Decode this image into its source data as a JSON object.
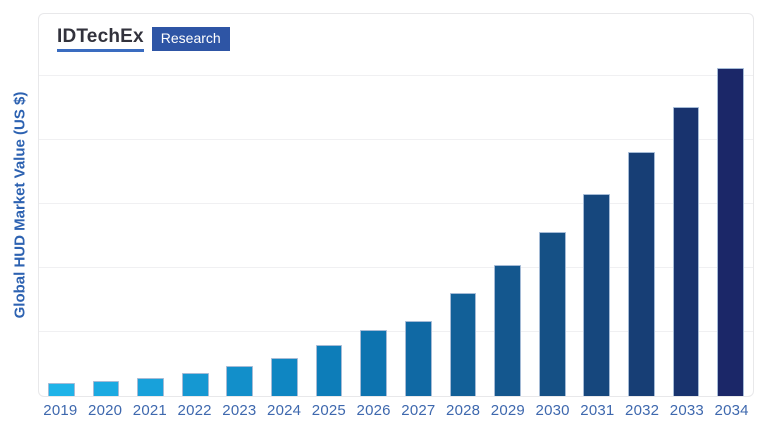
{
  "logo": {
    "brand": "IDTechEx",
    "product": "Research",
    "brand_color": "#32323c",
    "underline_color": "#3a6cc0",
    "badge_bg": "#2e55a5",
    "badge_text_color": "#ffffff"
  },
  "axes": {
    "y_title": "Global HUD Market Value (US $)",
    "y_title_color": "#2d62b1",
    "x_label_color": "#3e68ae",
    "y_numeric_labels_shown": "none"
  },
  "chart_data": {
    "type": "bar",
    "title": "",
    "xlabel": "",
    "ylabel": "Global HUD Market Value (US $)",
    "value_note": "y-axis has no numeric tick labels; values estimated in gridline units (1 unit = one horizontal gridline interval)",
    "categories": [
      "2019",
      "2020",
      "2021",
      "2022",
      "2023",
      "2024",
      "2025",
      "2026",
      "2027",
      "2028",
      "2029",
      "2030",
      "2031",
      "2032",
      "2033",
      "2034"
    ],
    "values": [
      0.21,
      0.23,
      0.28,
      0.36,
      0.47,
      0.59,
      0.8,
      1.03,
      1.17,
      1.61,
      2.05,
      2.56,
      3.15,
      3.81,
      4.52,
      5.12
    ],
    "ylim": [
      0,
      5.97
    ],
    "gridline_count": 5,
    "gridline_step": 1,
    "grid_on": true,
    "legend": "none",
    "bar_colors": [
      "#1fb3e8",
      "#1baae1",
      "#18a1da",
      "#1598d2",
      "#128fca",
      "#0f86c2",
      "#0d7db9",
      "#0e74b0",
      "#1069a4",
      "#126098",
      "#14578e",
      "#155085",
      "#16477d",
      "#173e75",
      "#18336e",
      "#1b2768"
    ]
  }
}
